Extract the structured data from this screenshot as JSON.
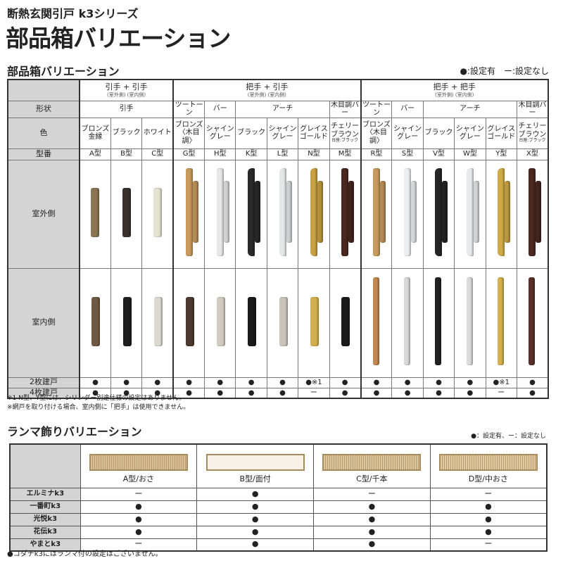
{
  "header": {
    "series": "断熱玄関引戸 k3シリーズ",
    "title": "部品箱バリエーション"
  },
  "section1": {
    "title": "部品箱バリエーション",
    "legend": "●:設定有　ー:設定なし",
    "row_labels": {
      "shape": "形状",
      "color": "色",
      "model": "型番",
      "outside": "室外側",
      "inside": "室内側",
      "two": "2枚建戸",
      "four": "4枚建戸"
    },
    "groups": [
      {
        "label": "引手 + 引手",
        "sub": "(室外側) (室内側)"
      },
      {
        "label": "把手 + 引手",
        "sub": "(室外側) (室内側)"
      },
      {
        "label": "把手 + 把手",
        "sub": "(室外側) (室内側)"
      }
    ],
    "shapes": [
      {
        "label": "引手",
        "span": 3
      },
      {
        "label": "ツートーン",
        "span": 1
      },
      {
        "label": "バー",
        "span": 1
      },
      {
        "label": "アーチ",
        "span": 3
      },
      {
        "label": "木目調バー",
        "span": 1
      },
      {
        "label": "ツートーン",
        "span": 1
      },
      {
        "label": "バー",
        "span": 1
      },
      {
        "label": "アーチ",
        "span": 3
      },
      {
        "label": "木目調バー",
        "span": 1
      }
    ],
    "columns": [
      {
        "model": "A型",
        "color": "ブロンズ 金縁",
        "note": "",
        "out": "#8a7654",
        "in": "#6e5a44",
        "two": "●",
        "four": "●"
      },
      {
        "model": "B型",
        "color": "ブラック",
        "note": "",
        "out": "#3a302c",
        "in": "#1e1e1e",
        "two": "●",
        "four": "●"
      },
      {
        "model": "C型",
        "color": "ホワイト",
        "note": "",
        "out": "#e6e2d2",
        "in": "#dcdad0",
        "two": "●",
        "four": "●"
      },
      {
        "model": "G型",
        "color": "ブロンズ 〈木目調〉",
        "note": "",
        "out": "#c79a5e",
        "in": "#4a3a30",
        "two": "●",
        "four": "●"
      },
      {
        "model": "H型",
        "color": "シャイン グレー",
        "note": "",
        "out": "#e8e8e8",
        "in": "#d0ccc0",
        "two": "●",
        "four": "●"
      },
      {
        "model": "K型",
        "color": "ブラック",
        "note": "",
        "out": "#2a2a2a",
        "in": "#1a1a1a",
        "two": "●",
        "four": "●"
      },
      {
        "model": "L型",
        "color": "シャイン グレー",
        "note": "",
        "out": "#e4e6e8",
        "in": "#c8c4b8",
        "two": "●",
        "four": "●"
      },
      {
        "model": "N型",
        "color": "グレイス ゴールド",
        "note": "",
        "out": "#c9a040",
        "in": "#d4b04c",
        "two": "●※1",
        "four": "ー"
      },
      {
        "model": "M型",
        "color": "チェリー ブラウン",
        "note": "台座:ブラック",
        "out": "#4a2820",
        "in": "#1a1a1a",
        "two": "●",
        "four": "●"
      },
      {
        "model": "R型",
        "color": "ブロンズ 〈木目調〉",
        "note": "",
        "out": "#c79a5e",
        "in": "#c08850",
        "two": "●",
        "four": "●"
      },
      {
        "model": "S型",
        "color": "シャイン グレー",
        "note": "",
        "out": "#eceef0",
        "in": "#d8d8d8",
        "two": "●",
        "four": "●"
      },
      {
        "model": "V型",
        "color": "ブラック",
        "note": "",
        "out": "#262626",
        "in": "#222",
        "two": "●",
        "four": "●"
      },
      {
        "model": "W型",
        "color": "シャイン グレー",
        "note": "",
        "out": "#e8eaec",
        "in": "#dcdcdc",
        "two": "●",
        "four": "●"
      },
      {
        "model": "Y型",
        "color": "グレイス ゴールド",
        "note": "",
        "out": "#d0aa48",
        "in": "#d4b050",
        "two": "●※1",
        "four": "ー"
      },
      {
        "model": "X型",
        "color": "チェリー ブラウン",
        "note": "台座:ブラック",
        "out": "#4a2820",
        "in": "#5a3028",
        "two": "●",
        "four": "●"
      }
    ],
    "notes": [
      "※1 N型、Y型には、シリンダー別途仕様の設定はありません。",
      "※網戸を取り付ける場合、室内側に「把手」は使用できません。"
    ]
  },
  "section2": {
    "title": "ランマ飾りバリエーション",
    "legend": "●：設定有、ー：設定なし",
    "types": [
      {
        "label": "A型/おさ",
        "fill": "#d8c098"
      },
      {
        "label": "B型/面付",
        "fill": "#f6f2e8"
      },
      {
        "label": "C型/千本",
        "fill": "#dcc8a0"
      },
      {
        "label": "D型/中おさ",
        "fill": "#e0cba4"
      }
    ],
    "rows": [
      {
        "name": "エルミナk3",
        "marks": [
          "ー",
          "●",
          "ー",
          "ー"
        ]
      },
      {
        "name": "一番町k3",
        "marks": [
          "●",
          "●",
          "●",
          "●"
        ]
      },
      {
        "name": "光悦k3",
        "marks": [
          "●",
          "●",
          "●",
          "●"
        ]
      },
      {
        "name": "花伝k3",
        "marks": [
          "●",
          "●",
          "●",
          "●"
        ]
      },
      {
        "name": "やまとk3",
        "marks": [
          "ー",
          "●",
          "●",
          "ー"
        ]
      }
    ],
    "note": "●コダチk3にはランマ付の設定はございません。"
  }
}
